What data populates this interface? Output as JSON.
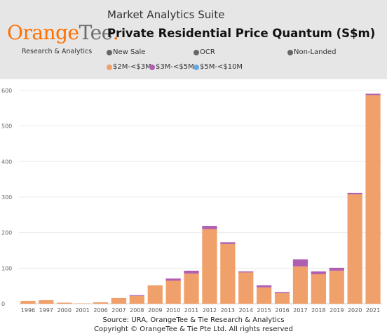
{
  "header": {
    "suite_title": "Market Analytics Suite",
    "logo_part1": "Orange",
    "logo_part2": "Tee",
    "logo_dot": ".",
    "logo_subtitle": "Research & Analytics",
    "chart_title": "Private Residential Price Quantum (S$m)"
  },
  "filters": [
    {
      "label": "New Sale",
      "color": "#666666"
    },
    {
      "label": "OCR",
      "color": "#666666"
    },
    {
      "label": "Non-Landed",
      "color": "#666666"
    }
  ],
  "footer": {
    "source": "Source: URA, OrangeTee & Tie Research & Analytics",
    "copyright": "Copyright © OrangeTee & Tie Pte Ltd. All rights reserved"
  },
  "chart_data": {
    "type": "bar",
    "stacked": true,
    "title": "Private Residential Price Quantum (S$m)",
    "categories": [
      "1996",
      "1997",
      "2000",
      "2001",
      "2006",
      "2007",
      "2008",
      "2009",
      "2010",
      "2011",
      "2012",
      "2013",
      "2014",
      "2015",
      "2016",
      "2017",
      "2018",
      "2019",
      "2020",
      "2021"
    ],
    "series": [
      {
        "name": "$2M-<$3M",
        "color": "#f0a06a",
        "values": [
          8,
          10,
          3,
          1,
          4,
          16,
          22,
          52,
          65,
          85,
          210,
          168,
          88,
          46,
          30,
          105,
          83,
          93,
          308,
          587
        ]
      },
      {
        "name": "$3M-<$5M",
        "color": "#b05fb0",
        "values": [
          0,
          0,
          0,
          0,
          0,
          0,
          2,
          0,
          6,
          8,
          9,
          5,
          3,
          6,
          3,
          20,
          8,
          8,
          4,
          4
        ]
      },
      {
        "name": "$5M-<$10M",
        "color": "#6aa9de",
        "values": [
          0,
          0,
          0,
          0,
          0,
          0,
          0,
          0,
          0,
          0,
          0,
          0,
          0,
          0,
          0,
          0,
          0,
          0,
          0,
          0
        ]
      }
    ],
    "ylim": [
      0,
      600
    ],
    "yticks": [
      0,
      100,
      200,
      300,
      400,
      500,
      600
    ],
    "grid": true,
    "legend_placement": "top"
  }
}
